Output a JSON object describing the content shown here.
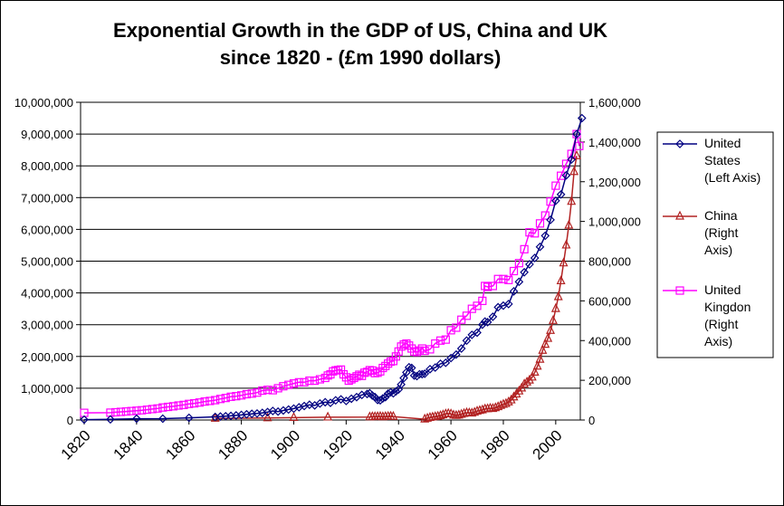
{
  "chart_data": {
    "type": "line",
    "title": "Exponential Growth in the GDP of US, China and UK",
    "title_line2": "since 1820 - (£m 1990 dollars)",
    "x_ticks": [
      "1820",
      "1840",
      "1860",
      "1880",
      "1900",
      "1920",
      "1940",
      "1960",
      "1980",
      "2000"
    ],
    "xlim": [
      1820,
      2008
    ],
    "y_left_ticks": [
      "0",
      "1,000,000",
      "2,000,000",
      "3,000,000",
      "4,000,000",
      "5,000,000",
      "6,000,000",
      "7,000,000",
      "8,000,000",
      "9,000,000",
      "10,000,000"
    ],
    "ylim_left": [
      0,
      10000000
    ],
    "y_right_ticks": [
      "0",
      "200,000",
      "400,000",
      "600,000",
      "800,000",
      "1,000,000",
      "1,200,000",
      "1,400,000",
      "1,600,000"
    ],
    "ylim_right": [
      0,
      1600000
    ],
    "gridlines": "horizontal",
    "legend_position": "right",
    "series": [
      {
        "name": "United States (Left Axis)",
        "legend_lines": [
          "United",
          "States",
          "(Left Axis)"
        ],
        "axis": "left",
        "color": "#000080",
        "marker": "diamond",
        "points": [
          [
            1820,
            12548
          ],
          [
            1830,
            19000
          ],
          [
            1840,
            41000
          ],
          [
            1850,
            42583
          ],
          [
            1860,
            69346
          ],
          [
            1870,
            98374
          ],
          [
            1872,
            110000
          ],
          [
            1874,
            120000
          ],
          [
            1876,
            130000
          ],
          [
            1878,
            145000
          ],
          [
            1880,
            160000
          ],
          [
            1882,
            180000
          ],
          [
            1884,
            195000
          ],
          [
            1886,
            205000
          ],
          [
            1888,
            225000
          ],
          [
            1890,
            250000
          ],
          [
            1892,
            285000
          ],
          [
            1894,
            265000
          ],
          [
            1896,
            300000
          ],
          [
            1898,
            330000
          ],
          [
            1900,
            360000
          ],
          [
            1902,
            400000
          ],
          [
            1904,
            440000
          ],
          [
            1906,
            480000
          ],
          [
            1908,
            460000
          ],
          [
            1910,
            520000
          ],
          [
            1912,
            560000
          ],
          [
            1914,
            540000
          ],
          [
            1916,
            620000
          ],
          [
            1918,
            650000
          ],
          [
            1920,
            600000
          ],
          [
            1922,
            670000
          ],
          [
            1924,
            720000
          ],
          [
            1926,
            790000
          ],
          [
            1928,
            820000
          ],
          [
            1929,
            843000
          ],
          [
            1930,
            770000
          ],
          [
            1931,
            720000
          ],
          [
            1932,
            630000
          ],
          [
            1933,
            620000
          ],
          [
            1934,
            680000
          ],
          [
            1935,
            720000
          ],
          [
            1936,
            830000
          ],
          [
            1937,
            870000
          ],
          [
            1938,
            840000
          ],
          [
            1939,
            900000
          ],
          [
            1940,
            960000
          ],
          [
            1941,
            1120000
          ],
          [
            1942,
            1320000
          ],
          [
            1943,
            1500000
          ],
          [
            1944,
            1660000
          ],
          [
            1945,
            1640000
          ],
          [
            1946,
            1400000
          ],
          [
            1947,
            1380000
          ],
          [
            1948,
            1440000
          ],
          [
            1949,
            1440000
          ],
          [
            1950,
            1456000
          ],
          [
            1952,
            1600000
          ],
          [
            1954,
            1650000
          ],
          [
            1956,
            1770000
          ],
          [
            1958,
            1800000
          ],
          [
            1960,
            1950000
          ],
          [
            1962,
            2060000
          ],
          [
            1964,
            2250000
          ],
          [
            1966,
            2500000
          ],
          [
            1968,
            2680000
          ],
          [
            1970,
            2750000
          ],
          [
            1972,
            3000000
          ],
          [
            1973,
            3100000
          ],
          [
            1974,
            3080000
          ],
          [
            1976,
            3250000
          ],
          [
            1978,
            3550000
          ],
          [
            1980,
            3600000
          ],
          [
            1982,
            3650000
          ],
          [
            1984,
            4050000
          ],
          [
            1986,
            4350000
          ],
          [
            1988,
            4650000
          ],
          [
            1990,
            4900000
          ],
          [
            1992,
            5100000
          ],
          [
            1994,
            5450000
          ],
          [
            1996,
            5800000
          ],
          [
            1998,
            6300000
          ],
          [
            2000,
            6900000
          ],
          [
            2002,
            7100000
          ],
          [
            2004,
            7700000
          ],
          [
            2006,
            8200000
          ],
          [
            2008,
            9000000
          ],
          [
            2010,
            9500000
          ]
        ]
      },
      {
        "name": "China (Right Axis)",
        "legend_lines": [
          "China",
          "(Right",
          "Axis)"
        ],
        "axis": "right",
        "color": "#b22222",
        "marker": "triangle",
        "points": [
          [
            1870,
            8000
          ],
          [
            1890,
            10000
          ],
          [
            1900,
            12000
          ],
          [
            1913,
            14000
          ],
          [
            1929,
            15000
          ],
          [
            1930,
            16000
          ],
          [
            1931,
            16000
          ],
          [
            1932,
            16500
          ],
          [
            1933,
            17000
          ],
          [
            1934,
            15500
          ],
          [
            1935,
            16500
          ],
          [
            1936,
            17500
          ],
          [
            1937,
            18000
          ],
          [
            1938,
            17000
          ],
          [
            1950,
            4000
          ],
          [
            1951,
            8000
          ],
          [
            1952,
            12000
          ],
          [
            1953,
            14000
          ],
          [
            1954,
            16000
          ],
          [
            1955,
            18000
          ],
          [
            1956,
            21000
          ],
          [
            1957,
            25000
          ],
          [
            1958,
            30000
          ],
          [
            1959,
            32000
          ],
          [
            1960,
            30000
          ],
          [
            1961,
            24000
          ],
          [
            1962,
            22000
          ],
          [
            1963,
            24000
          ],
          [
            1964,
            28000
          ],
          [
            1965,
            32000
          ],
          [
            1966,
            36000
          ],
          [
            1967,
            35000
          ],
          [
            1968,
            34000
          ],
          [
            1969,
            38000
          ],
          [
            1970,
            44000
          ],
          [
            1971,
            47000
          ],
          [
            1972,
            50000
          ],
          [
            1973,
            55000
          ],
          [
            1974,
            56000
          ],
          [
            1975,
            58000
          ],
          [
            1976,
            57000
          ],
          [
            1977,
            61000
          ],
          [
            1978,
            66000
          ],
          [
            1979,
            72000
          ],
          [
            1980,
            78000
          ],
          [
            1981,
            82000
          ],
          [
            1982,
            90000
          ],
          [
            1983,
            100000
          ],
          [
            1984,
            115000
          ],
          [
            1985,
            130000
          ],
          [
            1986,
            145000
          ],
          [
            1987,
            160000
          ],
          [
            1988,
            180000
          ],
          [
            1989,
            190000
          ],
          [
            1990,
            200000
          ],
          [
            1991,
            215000
          ],
          [
            1992,
            240000
          ],
          [
            1993,
            270000
          ],
          [
            1994,
            305000
          ],
          [
            1995,
            350000
          ],
          [
            1996,
            380000
          ],
          [
            1997,
            410000
          ],
          [
            1998,
            450000
          ],
          [
            1999,
            500000
          ],
          [
            2000,
            560000
          ],
          [
            2001,
            620000
          ],
          [
            2002,
            700000
          ],
          [
            2003,
            790000
          ],
          [
            2004,
            880000
          ],
          [
            2005,
            980000
          ],
          [
            2006,
            1100000
          ],
          [
            2007,
            1250000
          ],
          [
            2008,
            1330000
          ]
        ]
      },
      {
        "name": "United Kingdon (Right Axis)",
        "legend_lines": [
          "United",
          "Kingdon",
          "(Right",
          "Axis)"
        ],
        "axis": "right",
        "color": "#ff00ff",
        "marker": "square",
        "points": [
          [
            1820,
            36000
          ],
          [
            1830,
            37000
          ],
          [
            1832,
            39000
          ],
          [
            1834,
            41000
          ],
          [
            1836,
            43000
          ],
          [
            1838,
            45000
          ],
          [
            1840,
            47000
          ],
          [
            1842,
            49000
          ],
          [
            1844,
            52000
          ],
          [
            1846,
            55000
          ],
          [
            1848,
            58000
          ],
          [
            1850,
            63000
          ],
          [
            1852,
            66000
          ],
          [
            1854,
            69000
          ],
          [
            1856,
            73000
          ],
          [
            1858,
            76000
          ],
          [
            1860,
            81000
          ],
          [
            1862,
            84000
          ],
          [
            1864,
            88000
          ],
          [
            1866,
            93000
          ],
          [
            1868,
            96000
          ],
          [
            1870,
            100000
          ],
          [
            1872,
            106000
          ],
          [
            1874,
            111000
          ],
          [
            1876,
            117000
          ],
          [
            1878,
            120000
          ],
          [
            1880,
            124000
          ],
          [
            1882,
            130000
          ],
          [
            1884,
            133000
          ],
          [
            1886,
            138000
          ],
          [
            1888,
            148000
          ],
          [
            1890,
            152000
          ],
          [
            1892,
            150000
          ],
          [
            1894,
            160000
          ],
          [
            1896,
            170000
          ],
          [
            1898,
            177000
          ],
          [
            1900,
            184000
          ],
          [
            1902,
            190000
          ],
          [
            1904,
            190000
          ],
          [
            1906,
            198000
          ],
          [
            1908,
            198000
          ],
          [
            1910,
            205000
          ],
          [
            1912,
            212000
          ],
          [
            1913,
            224000
          ],
          [
            1914,
            230000
          ],
          [
            1915,
            245000
          ],
          [
            1916,
            250000
          ],
          [
            1917,
            252000
          ],
          [
            1918,
            254000
          ],
          [
            1919,
            230000
          ],
          [
            1920,
            215000
          ],
          [
            1921,
            198000
          ],
          [
            1922,
            205000
          ],
          [
            1923,
            212000
          ],
          [
            1924,
            220000
          ],
          [
            1925,
            228000
          ],
          [
            1926,
            222000
          ],
          [
            1927,
            238000
          ],
          [
            1928,
            242000
          ],
          [
            1929,
            251000
          ],
          [
            1930,
            249000
          ],
          [
            1931,
            236000
          ],
          [
            1932,
            238000
          ],
          [
            1933,
            245000
          ],
          [
            1934,
            262000
          ],
          [
            1935,
            272000
          ],
          [
            1936,
            284000
          ],
          [
            1937,
            294000
          ],
          [
            1938,
            297000
          ],
          [
            1939,
            320000
          ],
          [
            1940,
            345000
          ],
          [
            1941,
            370000
          ],
          [
            1942,
            380000
          ],
          [
            1943,
            385000
          ],
          [
            1944,
            375000
          ],
          [
            1945,
            360000
          ],
          [
            1946,
            345000
          ],
          [
            1947,
            342000
          ],
          [
            1948,
            350000
          ],
          [
            1949,
            360000
          ],
          [
            1950,
            348000
          ],
          [
            1952,
            356000
          ],
          [
            1954,
            385000
          ],
          [
            1956,
            400000
          ],
          [
            1958,
            405000
          ],
          [
            1960,
            452000
          ],
          [
            1962,
            465000
          ],
          [
            1964,
            505000
          ],
          [
            1966,
            525000
          ],
          [
            1968,
            560000
          ],
          [
            1970,
            575000
          ],
          [
            1972,
            600000
          ],
          [
            1973,
            675000
          ],
          [
            1974,
            670000
          ],
          [
            1976,
            675000
          ],
          [
            1978,
            710000
          ],
          [
            1980,
            710000
          ],
          [
            1982,
            705000
          ],
          [
            1984,
            750000
          ],
          [
            1986,
            790000
          ],
          [
            1988,
            860000
          ],
          [
            1990,
            945000
          ],
          [
            1992,
            940000
          ],
          [
            1994,
            990000
          ],
          [
            1996,
            1030000
          ],
          [
            1998,
            1100000
          ],
          [
            2000,
            1180000
          ],
          [
            2002,
            1230000
          ],
          [
            2004,
            1290000
          ],
          [
            2006,
            1340000
          ],
          [
            2008,
            1440000
          ],
          [
            2009,
            1380000
          ]
        ]
      }
    ]
  }
}
